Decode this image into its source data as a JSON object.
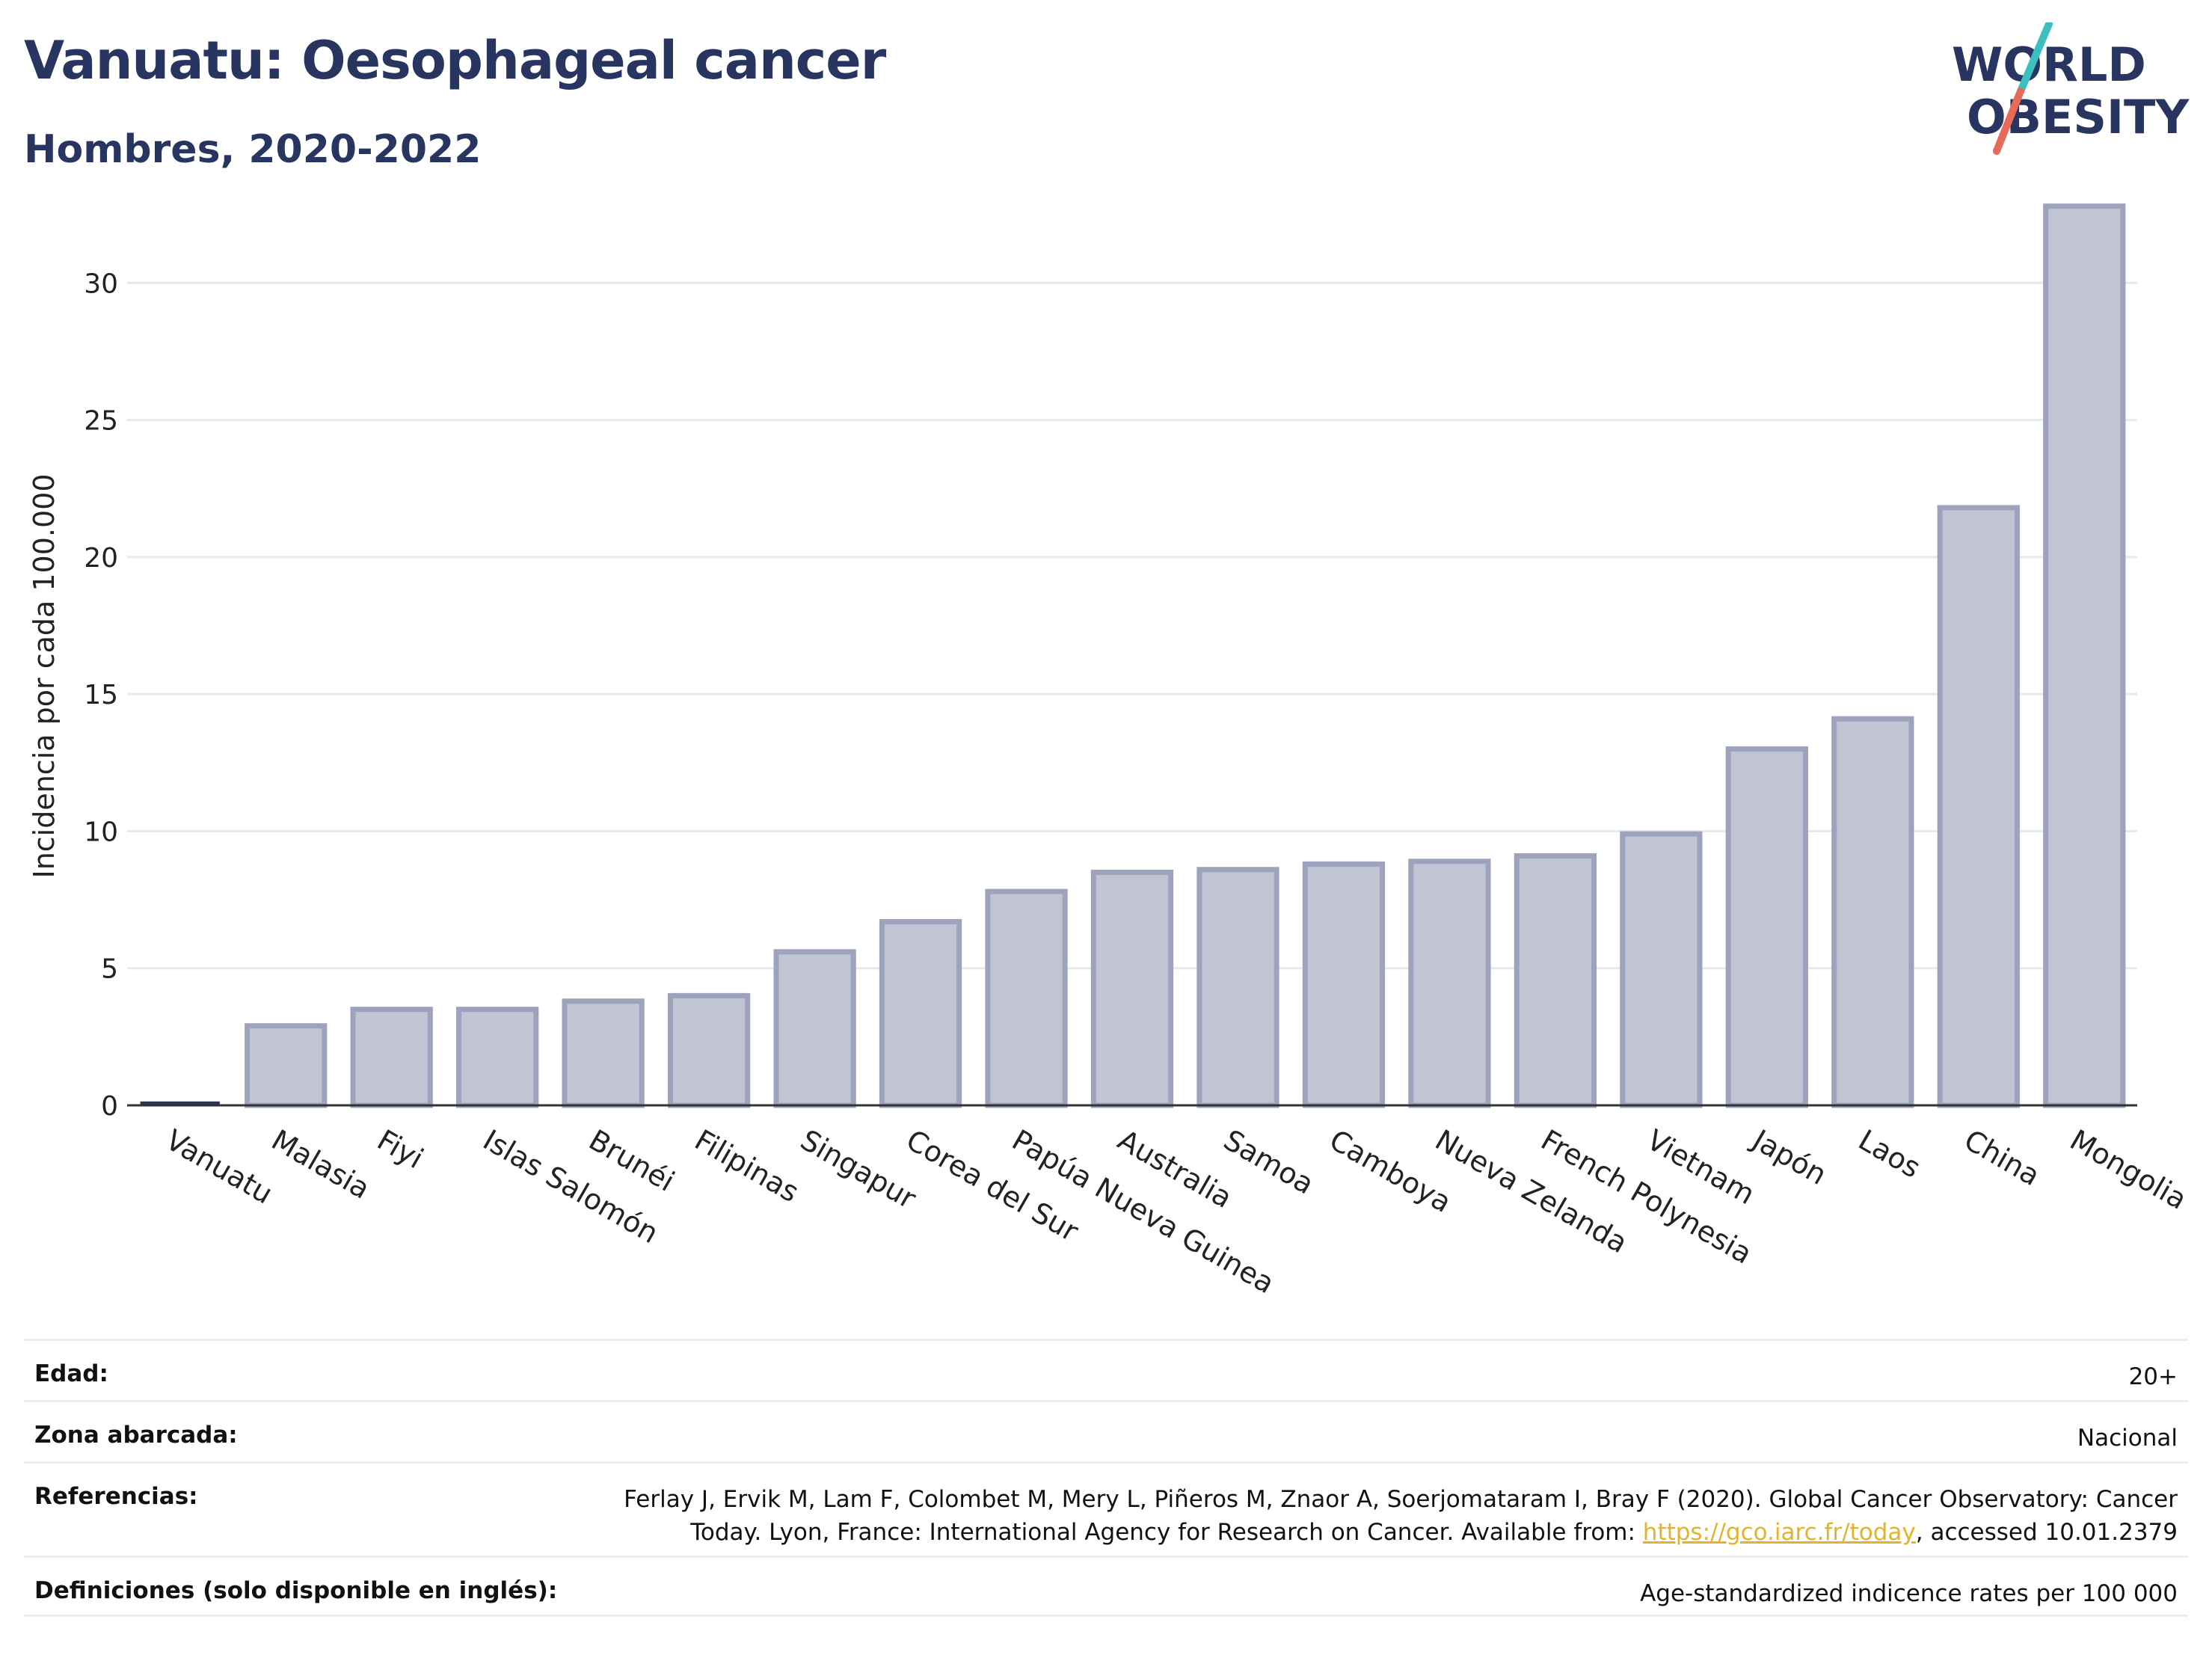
{
  "header": {
    "title": "Vanuatu: Oesophageal cancer",
    "subtitle": "Hombres, 2020-2022"
  },
  "logo": {
    "line1": "WORLD",
    "line2": "OBESITY",
    "colors": {
      "text": "#283560",
      "slash_top": "#3bbfc1",
      "slash_bottom": "#e86b5a"
    }
  },
  "chart_data": {
    "type": "bar",
    "ylabel": "Incidencia por cada 100.000",
    "ylim": [
      0,
      33.5
    ],
    "yticks": [
      0,
      5,
      10,
      15,
      20,
      25,
      30
    ],
    "grid": true,
    "categories": [
      "Vanuatu",
      "Malasia",
      "Fiyi",
      "Islas Salomón",
      "Brunéi",
      "Filipinas",
      "Singapur",
      "Corea del Sur",
      "Papúa Nueva Guinea",
      "Australia",
      "Samoa",
      "Camboya",
      "Nueva Zelanda",
      "French Polynesia",
      "Vietnam",
      "Japón",
      "Laos",
      "China",
      "Mongolia"
    ],
    "values": [
      0.1,
      2.9,
      3.5,
      3.5,
      3.8,
      4.0,
      5.6,
      6.7,
      7.8,
      8.5,
      8.6,
      8.8,
      8.9,
      9.1,
      9.9,
      13.0,
      14.1,
      21.8,
      32.8
    ],
    "highlight": "Vanuatu",
    "colors": {
      "bar_fill": "#c1c4d3",
      "bar_stroke": "#9ea3bd",
      "highlight": "#283560",
      "grid": "#e6e9ee"
    }
  },
  "meta": {
    "age_label": "Edad:",
    "age_value": "20+",
    "zone_label": "Zona abarcada:",
    "zone_value": "Nacional",
    "refs_label": "Referencias:",
    "refs_line1": "Ferlay J, Ervik M, Lam F, Colombet M, Mery L, Piñeros M, Znaor A, Soerjomataram I, Bray F (2020). Global Cancer Observatory: Cancer",
    "refs_line2_pre": "Today. Lyon, France: International Agency for Research on Cancer. Available from: ",
    "refs_link": "https://gco.iarc.fr/today",
    "refs_line2_post": ", accessed 10.01.2379",
    "defs_label": "Definiciones (solo disponible en inglés):",
    "defs_value": "Age-standardized indicence rates per 100 000"
  }
}
